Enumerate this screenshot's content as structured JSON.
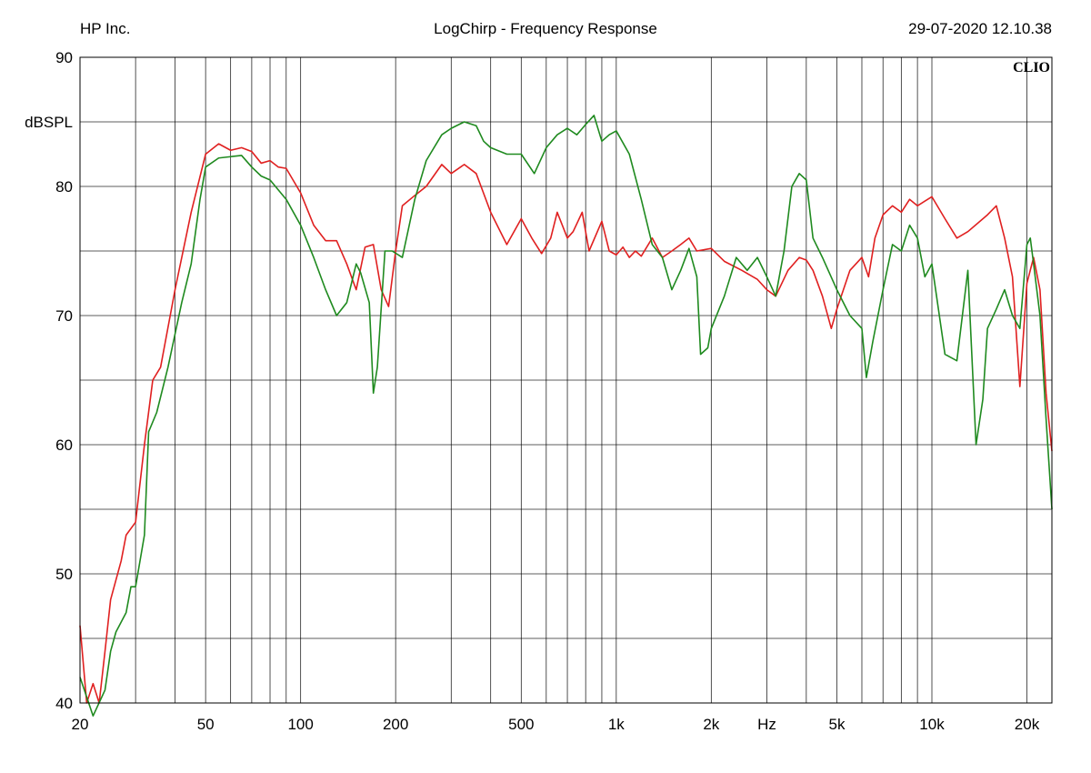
{
  "header": {
    "left": "HP Inc.",
    "center": "LogChirp - Frequency Response",
    "right": "29-07-2020 12.10.38"
  },
  "brand": "CLIO",
  "colors": {
    "red": "#e02020",
    "green": "#1f8a1f",
    "grid": "#000000"
  },
  "chart_data": {
    "type": "line",
    "title": "LogChirp - Frequency Response",
    "ylabel": "dBSPL",
    "xlabel": "Hz",
    "xscale": "log",
    "xlim": [
      20,
      24000
    ],
    "ylim": [
      40,
      90
    ],
    "grid": true,
    "x_ticks": [
      {
        "value": 20,
        "label": "20"
      },
      {
        "value": 50,
        "label": "50"
      },
      {
        "value": 100,
        "label": "100"
      },
      {
        "value": 200,
        "label": "200"
      },
      {
        "value": 500,
        "label": "500"
      },
      {
        "value": 1000,
        "label": "1k"
      },
      {
        "value": 2000,
        "label": "2k"
      },
      {
        "value": 5000,
        "label": "5k"
      },
      {
        "value": 10000,
        "label": "10k"
      },
      {
        "value": 20000,
        "label": "20k"
      }
    ],
    "x_axis_label_at": 3000,
    "y_ticks": [
      {
        "value": 90,
        "label": "90"
      },
      {
        "value": 80,
        "label": "80"
      },
      {
        "value": 70,
        "label": "70"
      },
      {
        "value": 60,
        "label": "60"
      },
      {
        "value": 50,
        "label": "50"
      },
      {
        "value": 40,
        "label": "40"
      }
    ],
    "y_axis_label_at": 85,
    "series": [
      {
        "color": "#e02020",
        "points": [
          [
            20,
            46
          ],
          [
            21,
            40
          ],
          [
            22,
            41.5
          ],
          [
            23,
            40
          ],
          [
            24,
            44
          ],
          [
            25,
            48
          ],
          [
            27,
            51
          ],
          [
            28,
            53
          ],
          [
            30,
            54
          ],
          [
            32,
            60
          ],
          [
            34,
            65
          ],
          [
            36,
            66
          ],
          [
            40,
            72
          ],
          [
            45,
            78
          ],
          [
            50,
            82.5
          ],
          [
            55,
            83.3
          ],
          [
            60,
            82.8
          ],
          [
            65,
            83
          ],
          [
            70,
            82.7
          ],
          [
            75,
            81.8
          ],
          [
            80,
            82
          ],
          [
            85,
            81.5
          ],
          [
            90,
            81.4
          ],
          [
            100,
            79.5
          ],
          [
            110,
            77
          ],
          [
            120,
            75.8
          ],
          [
            130,
            75.8
          ],
          [
            140,
            74
          ],
          [
            150,
            72
          ],
          [
            160,
            75.3
          ],
          [
            170,
            75.5
          ],
          [
            180,
            72
          ],
          [
            190,
            70.7
          ],
          [
            200,
            75
          ],
          [
            210,
            78.5
          ],
          [
            230,
            79.3
          ],
          [
            250,
            80
          ],
          [
            280,
            81.7
          ],
          [
            300,
            81
          ],
          [
            330,
            81.7
          ],
          [
            360,
            81
          ],
          [
            400,
            78
          ],
          [
            450,
            75.5
          ],
          [
            500,
            77.5
          ],
          [
            540,
            76
          ],
          [
            580,
            74.8
          ],
          [
            620,
            76
          ],
          [
            650,
            78
          ],
          [
            700,
            76
          ],
          [
            730,
            76.5
          ],
          [
            780,
            78
          ],
          [
            820,
            75
          ],
          [
            900,
            77.3
          ],
          [
            950,
            75
          ],
          [
            1000,
            74.7
          ],
          [
            1050,
            75.3
          ],
          [
            1100,
            74.5
          ],
          [
            1150,
            75
          ],
          [
            1200,
            74.6
          ],
          [
            1300,
            76
          ],
          [
            1400,
            74.5
          ],
          [
            1500,
            75
          ],
          [
            1600,
            75.5
          ],
          [
            1700,
            76
          ],
          [
            1800,
            75
          ],
          [
            2000,
            75.2
          ],
          [
            2200,
            74.2
          ],
          [
            2500,
            73.5
          ],
          [
            2800,
            72.8
          ],
          [
            3000,
            72
          ],
          [
            3200,
            71.5
          ],
          [
            3500,
            73.5
          ],
          [
            3800,
            74.5
          ],
          [
            4000,
            74.3
          ],
          [
            4200,
            73.5
          ],
          [
            4500,
            71.5
          ],
          [
            4800,
            69
          ],
          [
            5000,
            70.5
          ],
          [
            5500,
            73.5
          ],
          [
            6000,
            74.5
          ],
          [
            6300,
            73
          ],
          [
            6600,
            76
          ],
          [
            7000,
            77.8
          ],
          [
            7500,
            78.5
          ],
          [
            8000,
            78
          ],
          [
            8500,
            79
          ],
          [
            9000,
            78.5
          ],
          [
            10000,
            79.2
          ],
          [
            11000,
            77.5
          ],
          [
            12000,
            76
          ],
          [
            13000,
            76.5
          ],
          [
            15000,
            77.8
          ],
          [
            16000,
            78.5
          ],
          [
            17000,
            76
          ],
          [
            18000,
            73
          ],
          [
            19000,
            64.5
          ],
          [
            20000,
            72.5
          ],
          [
            21000,
            74.5
          ],
          [
            22000,
            72
          ],
          [
            23000,
            64
          ],
          [
            24000,
            59.5
          ]
        ]
      },
      {
        "color": "#1f8a1f",
        "points": [
          [
            20,
            42
          ],
          [
            22,
            39
          ],
          [
            24,
            41
          ],
          [
            25,
            44
          ],
          [
            26,
            45.5
          ],
          [
            28,
            47
          ],
          [
            29,
            49
          ],
          [
            30,
            49
          ],
          [
            32,
            53
          ],
          [
            33,
            61
          ],
          [
            35,
            62.5
          ],
          [
            38,
            66
          ],
          [
            42,
            71
          ],
          [
            45,
            74
          ],
          [
            48,
            79
          ],
          [
            50,
            81.5
          ],
          [
            55,
            82.2
          ],
          [
            65,
            82.4
          ],
          [
            70,
            81.5
          ],
          [
            75,
            80.8
          ],
          [
            80,
            80.5
          ],
          [
            90,
            79
          ],
          [
            100,
            77
          ],
          [
            110,
            74.5
          ],
          [
            120,
            72
          ],
          [
            130,
            70
          ],
          [
            140,
            71
          ],
          [
            150,
            74
          ],
          [
            155,
            73.3
          ],
          [
            165,
            71
          ],
          [
            170,
            64
          ],
          [
            175,
            66
          ],
          [
            185,
            75
          ],
          [
            195,
            75
          ],
          [
            210,
            74.5
          ],
          [
            230,
            79
          ],
          [
            250,
            82
          ],
          [
            280,
            84
          ],
          [
            300,
            84.5
          ],
          [
            330,
            85
          ],
          [
            360,
            84.7
          ],
          [
            380,
            83.5
          ],
          [
            400,
            83
          ],
          [
            450,
            82.5
          ],
          [
            500,
            82.5
          ],
          [
            550,
            81
          ],
          [
            600,
            83
          ],
          [
            650,
            84
          ],
          [
            700,
            84.5
          ],
          [
            750,
            84
          ],
          [
            800,
            84.8
          ],
          [
            850,
            85.5
          ],
          [
            900,
            83.5
          ],
          [
            950,
            84
          ],
          [
            1000,
            84.3
          ],
          [
            1100,
            82.5
          ],
          [
            1200,
            79
          ],
          [
            1300,
            75.5
          ],
          [
            1400,
            74.5
          ],
          [
            1500,
            72
          ],
          [
            1600,
            73.5
          ],
          [
            1700,
            75.2
          ],
          [
            1800,
            73
          ],
          [
            1850,
            67
          ],
          [
            1950,
            67.5
          ],
          [
            2000,
            69
          ],
          [
            2200,
            71.5
          ],
          [
            2400,
            74.5
          ],
          [
            2600,
            73.5
          ],
          [
            2800,
            74.5
          ],
          [
            3000,
            73
          ],
          [
            3200,
            71.5
          ],
          [
            3400,
            75
          ],
          [
            3600,
            80
          ],
          [
            3800,
            81
          ],
          [
            4000,
            80.5
          ],
          [
            4200,
            76
          ],
          [
            4500,
            74.5
          ],
          [
            5000,
            72
          ],
          [
            5500,
            70
          ],
          [
            6000,
            69
          ],
          [
            6200,
            65.2
          ],
          [
            6500,
            68
          ],
          [
            7000,
            72
          ],
          [
            7500,
            75.5
          ],
          [
            8000,
            75
          ],
          [
            8500,
            77
          ],
          [
            9000,
            76
          ],
          [
            9500,
            73
          ],
          [
            10000,
            74
          ],
          [
            11000,
            67
          ],
          [
            12000,
            66.5
          ],
          [
            13000,
            73.5
          ],
          [
            13800,
            60
          ],
          [
            14500,
            63.5
          ],
          [
            15000,
            69
          ],
          [
            16000,
            70.5
          ],
          [
            17000,
            72
          ],
          [
            18000,
            70
          ],
          [
            19000,
            69
          ],
          [
            20000,
            75.5
          ],
          [
            20500,
            76
          ],
          [
            21000,
            74
          ],
          [
            22000,
            70
          ],
          [
            23000,
            62
          ],
          [
            24000,
            55
          ]
        ]
      }
    ]
  }
}
